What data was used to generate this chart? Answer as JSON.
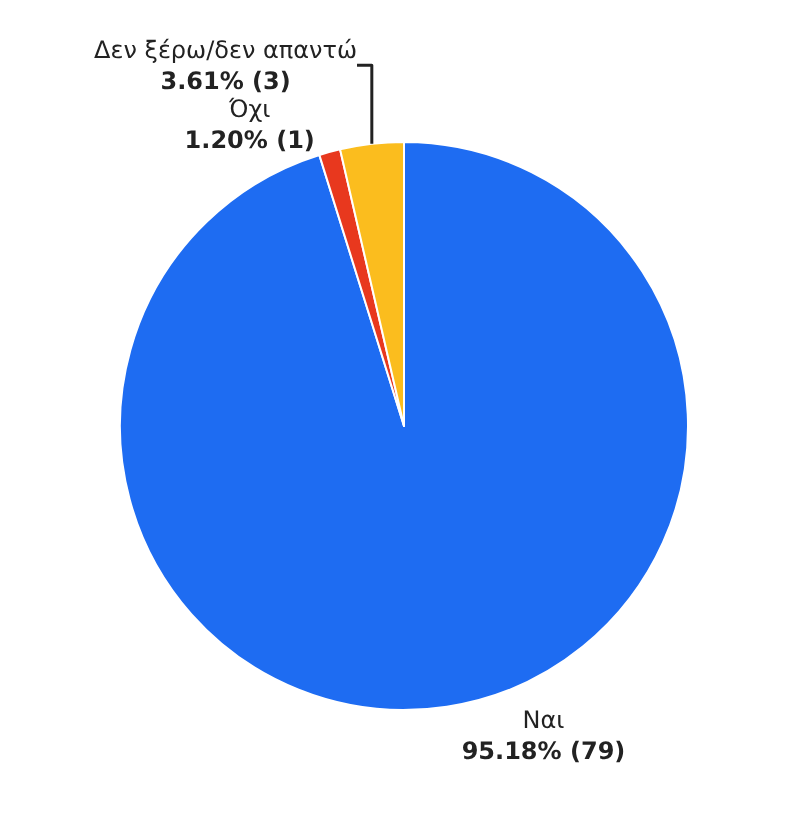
{
  "chart_data": {
    "type": "pie",
    "categories": [
      "Ναι",
      "Όχι",
      "Δεν ξέρω/δεν απαντώ"
    ],
    "values": [
      79,
      1,
      3
    ],
    "colors": [
      "#1e6cf2",
      "#e8381e",
      "#fbbd1e"
    ],
    "value_labels": [
      "95.18% (79)",
      "1.20% (1)",
      "3.61% (3)"
    ],
    "legend": false
  }
}
